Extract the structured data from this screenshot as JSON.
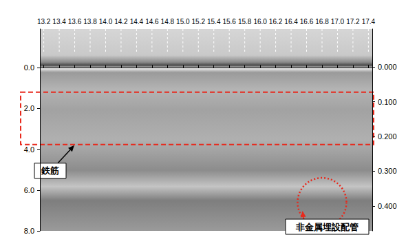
{
  "chart_data": {
    "type": "radargram",
    "xlim": [
      13.15,
      17.45
    ],
    "xticks": [
      13.2,
      13.4,
      13.6,
      13.8,
      {
        "value": 14,
        "label": "14.0"
      },
      14.2,
      14.4,
      14.6,
      14.8,
      {
        "value": 15,
        "label": "15.0"
      },
      15.2,
      15.4,
      15.6,
      15.8,
      {
        "value": 16,
        "label": "16.0"
      },
      16.2,
      16.4,
      16.6,
      16.8,
      {
        "value": 17,
        "label": "17.0"
      },
      17.2,
      17.4
    ],
    "ylim": [
      -1.9,
      8.0
    ],
    "yticks": [
      {
        "value": 0,
        "label": "0.0"
      },
      {
        "value": 2,
        "label": "2.0"
      },
      {
        "value": 4,
        "label": "4.0"
      },
      {
        "value": 6,
        "label": "6.0"
      },
      {
        "value": 8,
        "label": "8.0"
      }
    ],
    "y2lim": [
      -0.11,
      0.472
    ],
    "y2ticks": [
      {
        "value": 0,
        "label": "0.000"
      },
      {
        "value": 0.1,
        "label": "0.100"
      },
      {
        "value": 0.2,
        "label": "0.200"
      },
      {
        "value": 0.3,
        "label": "0.300"
      },
      {
        "value": 0.4,
        "label": "0.400"
      }
    ],
    "grid": true,
    "annotations": [
      {
        "text": "鉄筋",
        "shape": "rect",
        "ylim": [
          1.2,
          3.77
        ],
        "color": "#e8291c",
        "line_style": "dashed"
      },
      {
        "text": "非金属埋設配管",
        "shape": "circle",
        "x": 16.8,
        "y": 6.6,
        "radius": 1.2,
        "color": "#e8291c",
        "line_style": "dotted"
      }
    ]
  }
}
